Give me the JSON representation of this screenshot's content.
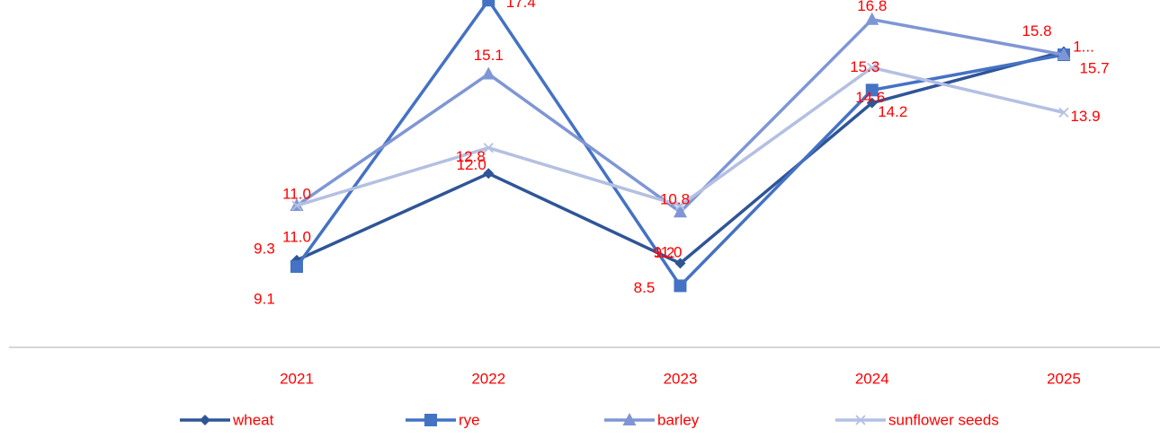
{
  "chart_data": {
    "type": "line",
    "title": "",
    "xlabel": "",
    "ylabel": "",
    "categories": [
      "2021",
      "2022",
      "2023",
      "2024",
      "2025"
    ],
    "ylim": [
      7,
      18
    ],
    "grid": false,
    "legend_position": "bottom",
    "label_color": "#ff0000",
    "series": [
      {
        "name": "wheat",
        "values": [
          9.3,
          12.0,
          9.2,
          14.2,
          15.8
        ],
        "labels": [
          "9.3",
          "12.0",
          "9.2",
          "14.2",
          "15.8"
        ],
        "color": "#2f5597",
        "marker": "diamond"
      },
      {
        "name": "rye",
        "values": [
          9.1,
          17.4,
          8.5,
          14.6,
          15.7
        ],
        "labels": [
          "9.1",
          "17.4",
          "8.5",
          "14.6",
          "1..."
        ],
        "color": "#4472c4",
        "marker": "square"
      },
      {
        "name": "barley",
        "values": [
          11.0,
          15.1,
          10.8,
          16.8,
          15.7
        ],
        "labels": [
          "11.0",
          "15.1",
          "10.8",
          "16.8",
          "15.7"
        ],
        "color": "#7f96d5",
        "marker": "triangle"
      },
      {
        "name": "sunflower seeds",
        "values": [
          11.0,
          12.8,
          11.0,
          15.3,
          13.9
        ],
        "labels": [
          "11.0",
          "12.8",
          "11.0",
          "15.3",
          "13.9"
        ],
        "color": "#b4c0e2",
        "marker": "x"
      }
    ]
  }
}
